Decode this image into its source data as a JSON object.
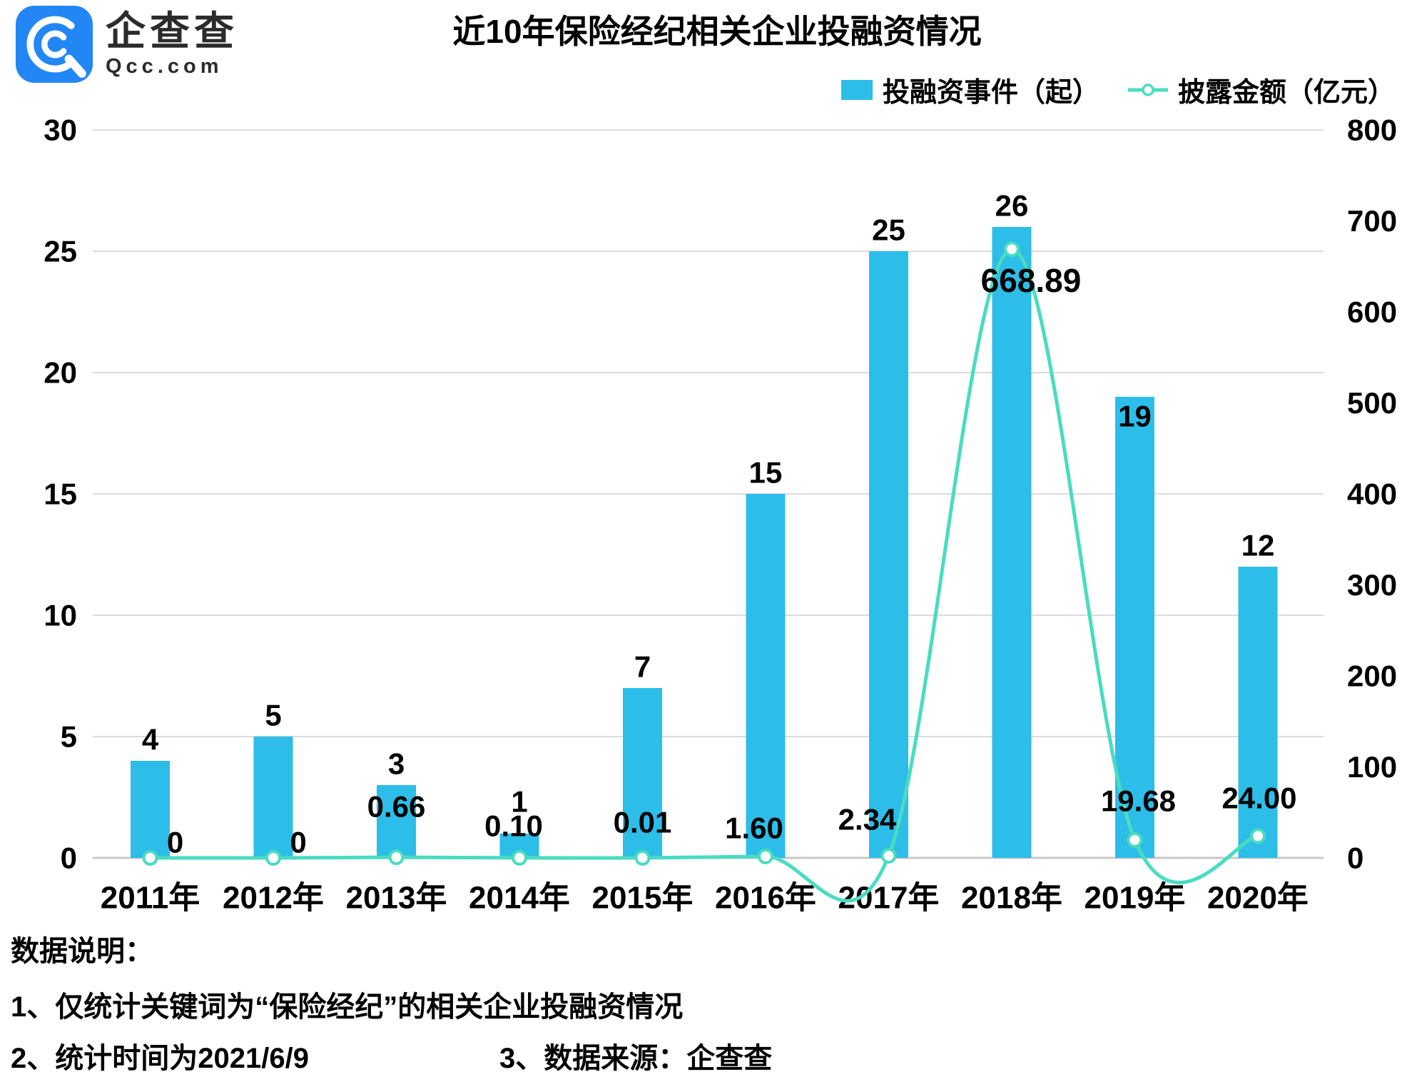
{
  "brand": {
    "name": "企查查",
    "domain": "Qcc.com",
    "logo_color": "#2287F5"
  },
  "title": "近10年保险经纪相关企业投融资情况",
  "legend": [
    {
      "label": "投融资事件（起）",
      "type": "bar",
      "color": "#2CBEE8"
    },
    {
      "label": "披露金额（亿元）",
      "type": "line",
      "color": "#49DCC0"
    }
  ],
  "notes": {
    "heading": "数据说明：",
    "item1": "1、仅统计关键词为“保险经纪”的相关企业投融资情况",
    "item2": "2、统计时间为2021/6/9",
    "item3": "3、数据来源：企查查"
  },
  "chart_data": {
    "type": "bar",
    "subtype": "bar+line dual-axis",
    "title": "近10年保险经纪相关企业投融资情况",
    "categories": [
      "2011年",
      "2012年",
      "2013年",
      "2014年",
      "2015年",
      "2016年",
      "2017年",
      "2018年",
      "2019年",
      "2020年"
    ],
    "series": [
      {
        "name": "投融资事件（起）",
        "type": "bar",
        "axis": "left",
        "color": "#2CBEE8",
        "values": [
          4,
          5,
          3,
          1,
          7,
          15,
          25,
          26,
          19,
          12
        ],
        "labels": [
          "4",
          "5",
          "3",
          "1",
          "7",
          "15",
          "25",
          "26",
          "19",
          "12"
        ]
      },
      {
        "name": "披露金额（亿元）",
        "type": "line",
        "axis": "right",
        "color": "#49DCC0",
        "values": [
          0,
          0,
          0.66,
          0.1,
          0.01,
          1.6,
          2.34,
          668.89,
          19.68,
          24.0
        ],
        "labels": [
          "0",
          "0",
          "0.66",
          "0.10",
          "0.01",
          "1.60",
          "2.34",
          "668.89",
          "19.68",
          "24.00"
        ]
      }
    ],
    "left_axis": {
      "min": 0,
      "max": 30,
      "step": 5,
      "ticks": [
        0,
        5,
        10,
        15,
        20,
        25,
        30
      ]
    },
    "right_axis": {
      "min": 0,
      "max": 800,
      "step": 100,
      "ticks": [
        0,
        100,
        200,
        300,
        400,
        500,
        600,
        700,
        800
      ]
    },
    "grid": true,
    "grid_color": "#dcdcdc",
    "axis_line_color": "#c9c9c9",
    "legend_position": "top-right"
  }
}
